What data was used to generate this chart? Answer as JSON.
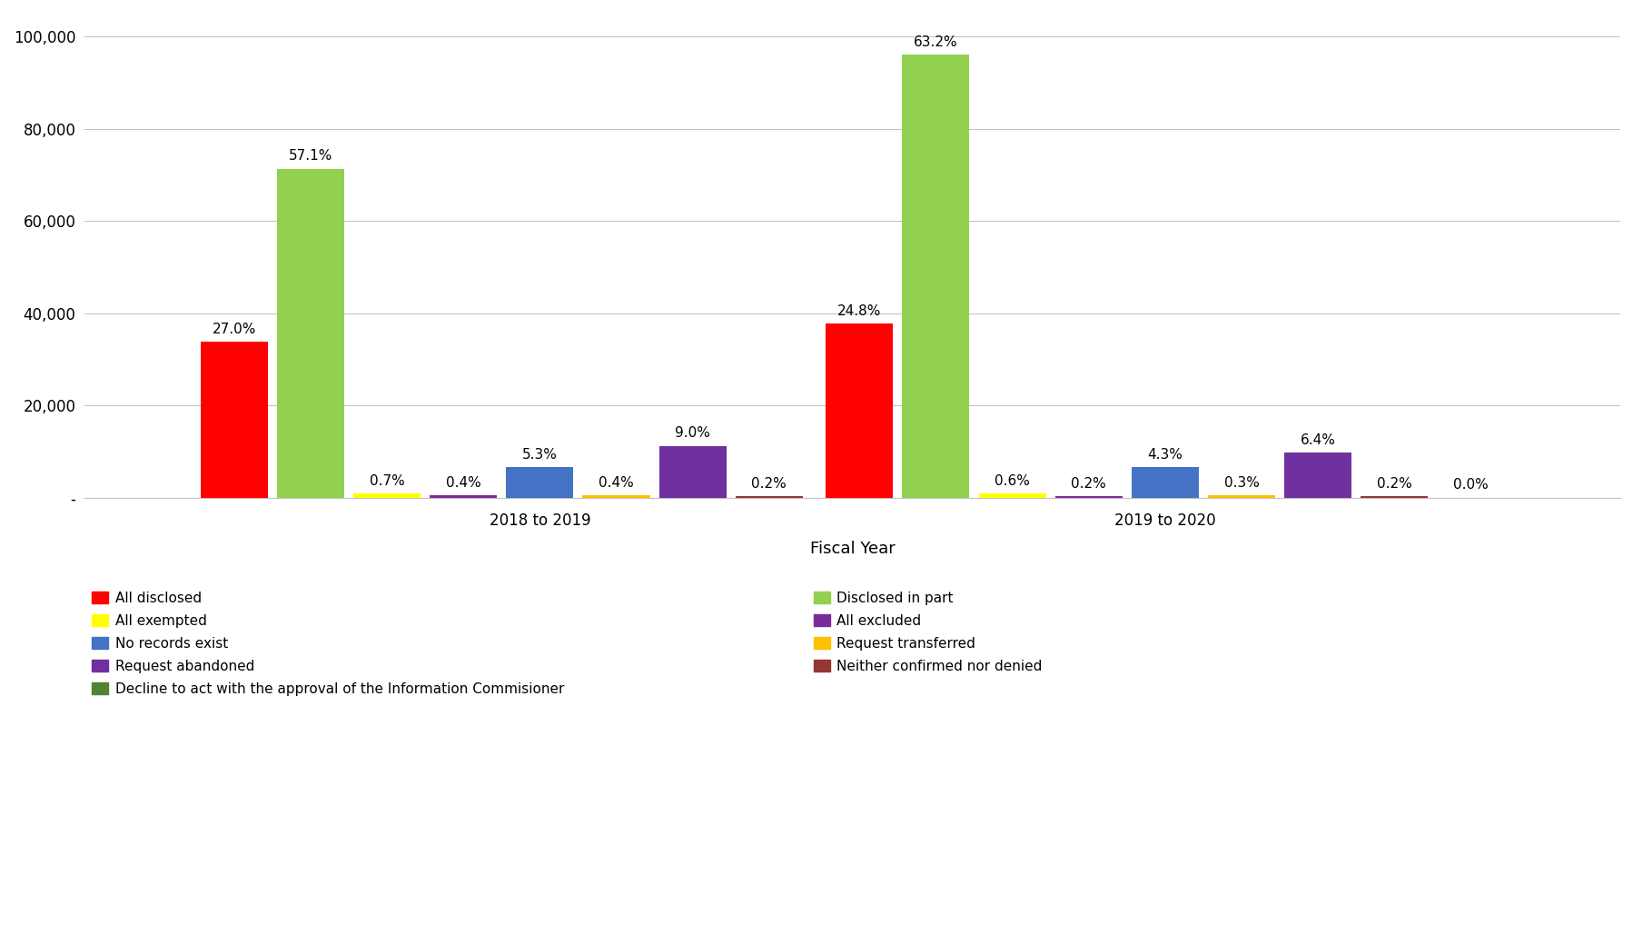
{
  "fiscal_years": [
    "2018 to 2019",
    "2019 to 2020"
  ],
  "categories": [
    "All disclosed",
    "Disclosed in part",
    "All exempted",
    "All excluded",
    "No records exist",
    "Request transferred",
    "Request abandoned",
    "Neither confirmed nor denied",
    "Decline to act with the approval of the Information Commisioner"
  ],
  "colors": [
    "#FF0000",
    "#92D050",
    "#FFFF00",
    "#7B2C9B",
    "#4472C4",
    "#FFC000",
    "#7030A0",
    "#943634",
    "#548235"
  ],
  "values_2018_2019": [
    33750,
    71375,
    875,
    500,
    6625,
    500,
    11250,
    250,
    0
  ],
  "values_2019_2020": [
    37700,
    96165,
    912,
    304,
    6539,
    456,
    9734,
    304,
    0
  ],
  "labels_2018_2019": [
    "27.0%",
    "57.1%",
    "0.7%",
    "0.4%",
    "5.3%",
    "0.4%",
    "9.0%",
    "0.2%",
    ""
  ],
  "labels_2019_2020": [
    "24.8%",
    "63.2%",
    "0.6%",
    "0.2%",
    "4.3%",
    "0.3%",
    "6.4%",
    "0.2%",
    "0.0%"
  ],
  "xlabel": "Fiscal Year",
  "ylim": [
    0,
    105000
  ],
  "yticks": [
    0,
    20000,
    40000,
    60000,
    80000,
    100000
  ],
  "ytick_labels": [
    "-",
    "20,000",
    "40,000",
    "60,000",
    "80,000",
    "100,000"
  ],
  "background_color": "#FFFFFF",
  "legend_left": [
    {
      "label": "All disclosed",
      "color": "#FF0000"
    },
    {
      "label": "All exempted",
      "color": "#FFFF00"
    },
    {
      "label": "No records exist",
      "color": "#4472C4"
    },
    {
      "label": "Request abandoned",
      "color": "#7030A0"
    },
    {
      "label": "Decline to act with the approval of the Information Commisioner",
      "color": "#548235"
    }
  ],
  "legend_right": [
    {
      "label": "Disclosed in part",
      "color": "#92D050"
    },
    {
      "label": "All excluded",
      "color": "#7B2C9B"
    },
    {
      "label": "Request transferred",
      "color": "#FFC000"
    },
    {
      "label": "Neither confirmed nor denied",
      "color": "#943634"
    }
  ],
  "bar_width": 0.055,
  "label_fontsize": 11,
  "tick_fontsize": 12,
  "xlabel_fontsize": 13,
  "legend_fontsize": 11
}
